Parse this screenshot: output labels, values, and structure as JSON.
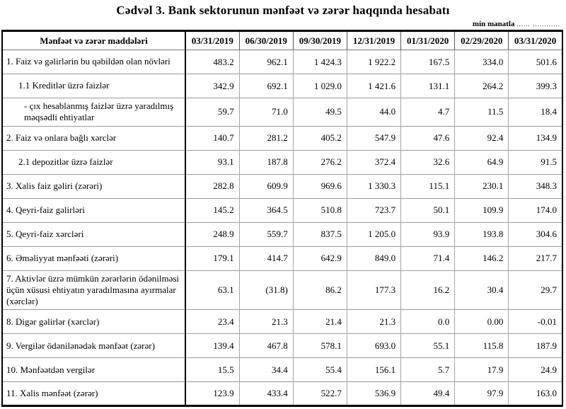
{
  "page": {
    "title": "Cədvəl 3. Bank sektorunun mənfəət və zərər haqqında hesabatı",
    "unit_note": "min manatla",
    "unit_note_dots": "...... ............",
    "colors": {
      "text": "#000000",
      "outer_border": "#000000",
      "grid_line": "#9a9a9a",
      "background": "#ffffff"
    }
  },
  "table": {
    "columns": [
      "Mənfəət və zərər maddələri",
      "03/31/2019",
      "06/30/2019",
      "09/30/2019",
      "12/31/2019",
      "01/31/2020",
      "02/29/2020",
      "03/31/2020"
    ],
    "rows": [
      {
        "label": "1. Faiz və gəlirlərin bu qəbildən olan növləri",
        "indent": 0,
        "values": [
          "483.2",
          "962.1",
          "1 424.3",
          "1 922.2",
          "167.5",
          "334.0",
          "501.6"
        ]
      },
      {
        "label": "1.1 Kreditlər üzrə faizlər",
        "indent": 1,
        "values": [
          "342.9",
          "692.1",
          "1 029.0",
          "1 421.6",
          "131.1",
          "264.2",
          "399.3"
        ]
      },
      {
        "label": "-  çıx hesablanmış faizlər üzrə yaradılmış məqsədli ehtiyatlar",
        "indent": 2,
        "values": [
          "59.7",
          "71.0",
          "49.5",
          "44.0",
          "4.7",
          "11.5",
          "18.4"
        ]
      },
      {
        "label": "2. Faiz və onlara bağlı xərclər",
        "indent": 0,
        "values": [
          "140.7",
          "281.2",
          "405.2",
          "547.9",
          "47.6",
          "92.4",
          "134.9"
        ]
      },
      {
        "label": "2.1 depozitlər üzrə faizlər",
        "indent": 1,
        "values": [
          "93.1",
          "187.8",
          "276.2",
          "372.4",
          "32.6",
          "64.9",
          "91.5"
        ]
      },
      {
        "label": "3. Xalis faiz gəliri (zərəri)",
        "indent": 0,
        "values": [
          "282.8",
          "609.9",
          "969.6",
          "1 330.3",
          "115.1",
          "230.1",
          "348.3"
        ]
      },
      {
        "label": "4. Qeyri-faiz gəlirləri",
        "indent": 0,
        "values": [
          "145.2",
          "364.5",
          "510.8",
          "723.7",
          "50.1",
          "109.9",
          "174.0"
        ]
      },
      {
        "label": "5. Qeyri-faiz xərcləri",
        "indent": 0,
        "values": [
          "248.9",
          "559.7",
          "837.5",
          "1 205.0",
          "93.9",
          "193.8",
          "304.6"
        ]
      },
      {
        "label": "6. Əməliyyat mənfəəti (zərəri)",
        "indent": 0,
        "values": [
          "179.1",
          "414.7",
          "642.9",
          "849.0",
          "71.4",
          "146.2",
          "217.7"
        ]
      },
      {
        "label": "7. Aktivlər üzrə mümkün zərərlərin ödənilməsi üçün xüsusi ehtiyatın yaradılmasına ayırmalar (xərclər)",
        "indent": 0,
        "values": [
          "63.1",
          "(31.8)",
          "86.2",
          "177.3",
          "16.2",
          "30.4",
          "29.7"
        ]
      },
      {
        "label": "8. Digər gəlirlər (xərclər)",
        "indent": 0,
        "values": [
          "23.4",
          "21.3",
          "21.4",
          "21.3",
          "0.0",
          "0.00",
          "-0.01"
        ]
      },
      {
        "label": "9. Vergilər ödənilənədək mənfəət (zərər)",
        "indent": 0,
        "values": [
          "139.4",
          "467.8",
          "578.1",
          "693.0",
          "55.1",
          "115.8",
          "187.9"
        ]
      },
      {
        "label": "10. Mənfəətdən vergilər",
        "indent": 0,
        "values": [
          "15.5",
          "34.4",
          "55.4",
          "156.1",
          "5.7",
          "17.9",
          "24.9"
        ]
      },
      {
        "label": "11. Xalis mənfəət (zərər)",
        "indent": 0,
        "values": [
          "123.9",
          "433.4",
          "522.7",
          "536.9",
          "49.4",
          "97.9",
          "163.0"
        ]
      }
    ]
  }
}
